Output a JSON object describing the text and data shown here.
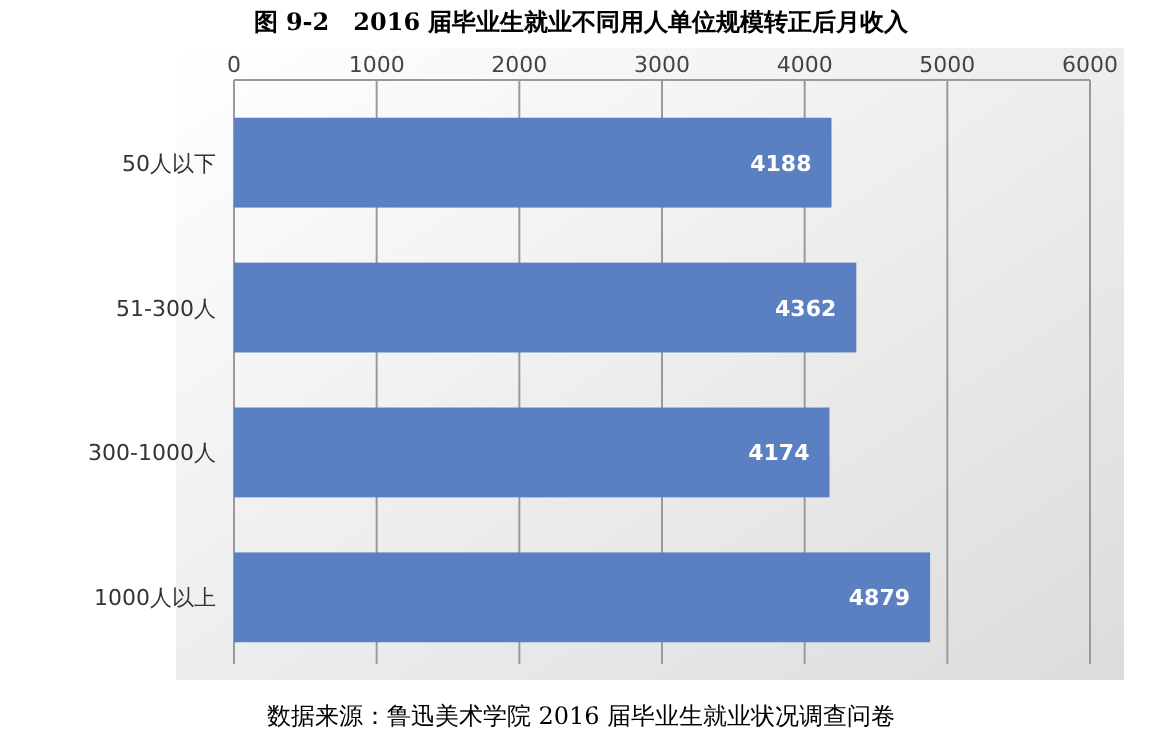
{
  "chart_data": {
    "type": "bar",
    "orientation": "horizontal",
    "title": "图 9-2　2016 届毕业生就业不同用人单位规模转正后月收入",
    "categories": [
      "50人以下",
      "51-300人",
      "300-1000人",
      "1000人以上"
    ],
    "values": [
      4188,
      4362,
      4174,
      4879
    ],
    "color": "#5b80c2",
    "xlim": [
      0,
      6000
    ],
    "xticks": [
      0,
      1000,
      2000,
      3000,
      4000,
      5000,
      6000
    ],
    "grid": "x",
    "data_labels": true,
    "annotations": [
      "数据来源：鲁迅美术学院 2016 届毕业生就业状况调查问卷"
    ]
  }
}
